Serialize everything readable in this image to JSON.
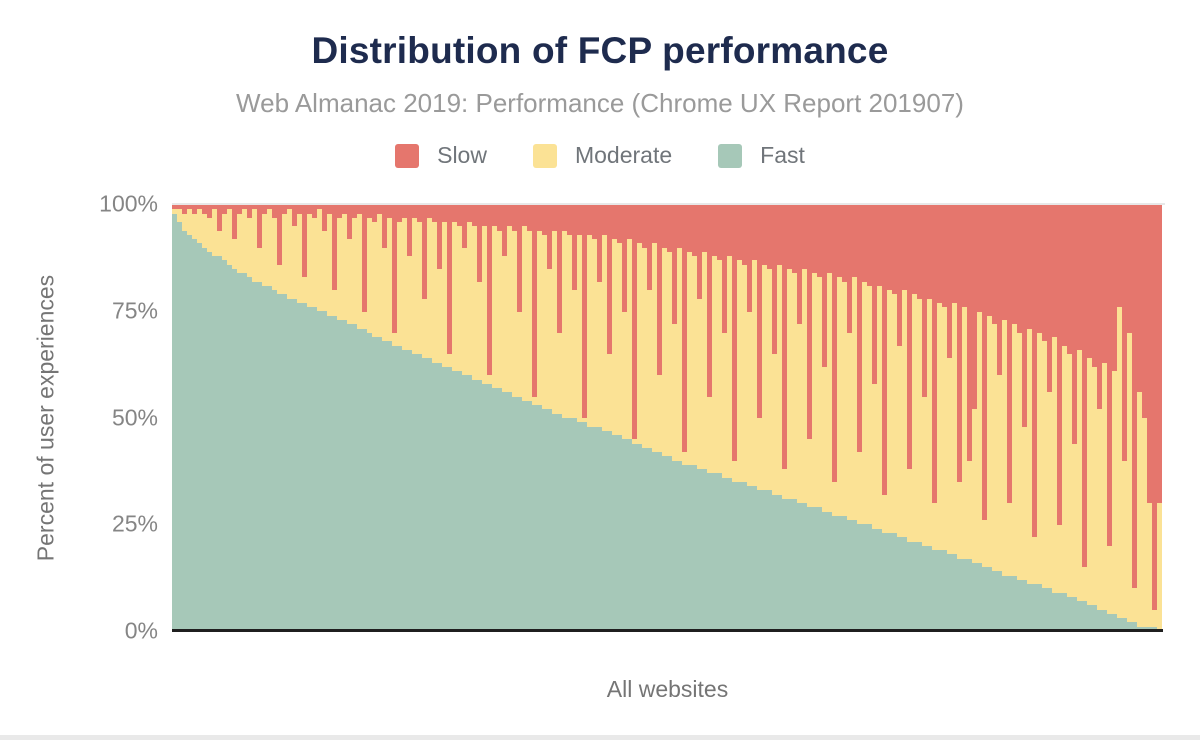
{
  "header": {
    "title": "Distribution of FCP performance",
    "subtitle": "Web Almanac 2019: Performance (Chrome UX Report 201907)"
  },
  "legend": [
    {
      "label": "Slow",
      "color": "#e5766d"
    },
    {
      "label": "Moderate",
      "color": "#fbe295"
    },
    {
      "label": "Fast",
      "color": "#a6c8b8"
    }
  ],
  "colors": {
    "background": "#ffffff",
    "title_text": "#1e2b4e",
    "subtitle_text": "#9a9a9a",
    "legend_text": "#70757a",
    "tick_text": "#858585",
    "axis_label_text": "#757575",
    "axis_line": "#1f1f1f",
    "gridline": "#e8e8e8",
    "footer_strip": "#e9e9e9"
  },
  "chart_data": {
    "type": "bar",
    "stacked": true,
    "stack_total_percent": 100,
    "title": "Distribution of FCP performance",
    "subtitle": "Web Almanac 2019: Performance (Chrome UX Report 201907)",
    "xlabel": "All websites",
    "ylabel": "Percent of user experiences",
    "ylim": [
      0,
      100
    ],
    "y_tick_labels": [
      "100%",
      "75%",
      "50%",
      "25%",
      "0%"
    ],
    "grid": "top-line-only",
    "legend_position": "top",
    "sort_order": "websites sorted by descending % fast (values sampled per column, left to right)",
    "series": [
      {
        "name": "Slow",
        "color": "#e5766d",
        "stack_position": "top"
      },
      {
        "name": "Moderate",
        "color": "#fbe295",
        "stack_position": "middle",
        "derivation": "100 - fast - slow"
      },
      {
        "name": "Fast",
        "color": "#a6c8b8",
        "stack_position": "bottom"
      }
    ],
    "columns": {
      "fast": [
        98,
        96,
        94,
        93,
        92,
        91,
        90,
        89,
        88,
        88,
        87,
        86,
        85,
        84,
        84,
        83,
        82,
        82,
        81,
        81,
        80,
        79,
        79,
        78,
        78,
        77,
        77,
        76,
        76,
        75,
        75,
        74,
        74,
        73,
        73,
        72,
        72,
        71,
        71,
        70,
        69,
        69,
        68,
        68,
        67,
        67,
        66,
        66,
        65,
        65,
        64,
        64,
        63,
        63,
        62,
        62,
        61,
        61,
        60,
        60,
        59,
        59,
        58,
        58,
        57,
        57,
        56,
        56,
        55,
        55,
        54,
        54,
        53,
        53,
        52,
        52,
        51,
        51,
        50,
        50,
        50,
        49,
        49,
        48,
        48,
        48,
        47,
        47,
        46,
        46,
        45,
        45,
        44,
        44,
        43,
        43,
        42,
        42,
        41,
        41,
        40,
        40,
        39,
        39,
        39,
        38,
        38,
        37,
        37,
        37,
        36,
        36,
        35,
        35,
        35,
        34,
        34,
        33,
        33,
        33,
        32,
        32,
        31,
        31,
        31,
        30,
        30,
        29,
        29,
        29,
        28,
        28,
        27,
        27,
        27,
        26,
        26,
        25,
        25,
        25,
        24,
        24,
        23,
        23,
        23,
        22,
        22,
        21,
        21,
        21,
        20,
        20,
        19,
        19,
        19,
        18,
        18,
        17,
        17,
        17,
        16,
        16,
        15,
        15,
        14,
        14,
        13,
        13,
        13,
        12,
        12,
        11,
        11,
        11,
        10,
        10,
        9,
        9,
        9,
        8,
        8,
        7,
        7,
        6,
        6,
        5,
        5,
        4,
        4,
        3,
        3,
        2,
        2,
        1,
        1,
        1,
        1,
        0
      ],
      "slow": [
        1,
        1,
        2,
        1,
        2,
        1,
        2,
        3,
        1,
        6,
        2,
        1,
        8,
        2,
        1,
        3,
        1,
        10,
        2,
        1,
        3,
        14,
        2,
        1,
        5,
        2,
        17,
        2,
        3,
        1,
        6,
        2,
        20,
        3,
        2,
        8,
        3,
        2,
        25,
        3,
        4,
        2,
        10,
        3,
        30,
        4,
        3,
        12,
        3,
        4,
        22,
        3,
        4,
        15,
        4,
        35,
        4,
        5,
        10,
        4,
        5,
        18,
        5,
        40,
        5,
        6,
        12,
        5,
        6,
        25,
        5,
        6,
        45,
        6,
        7,
        15,
        6,
        30,
        6,
        7,
        20,
        7,
        50,
        7,
        8,
        18,
        7,
        35,
        8,
        9,
        25,
        8,
        55,
        9,
        10,
        20,
        9,
        40,
        10,
        11,
        28,
        10,
        58,
        11,
        12,
        22,
        11,
        45,
        12,
        13,
        30,
        12,
        60,
        13,
        14,
        25,
        13,
        50,
        14,
        15,
        35,
        14,
        62,
        15,
        16,
        28,
        15,
        55,
        16,
        17,
        38,
        16,
        65,
        17,
        18,
        30,
        17,
        58,
        18,
        19,
        42,
        19,
        68,
        20,
        21,
        33,
        20,
        62,
        21,
        22,
        45,
        22,
        70,
        23,
        24,
        36,
        23,
        65,
        24,
        60,
        48,
        25,
        74,
        26,
        28,
        40,
        27,
        70,
        28,
        30,
        52,
        29,
        78,
        30,
        32,
        44,
        31,
        75,
        33,
        35,
        56,
        34,
        85,
        36,
        38,
        48,
        37,
        80,
        39,
        24,
        60,
        30,
        90,
        44,
        50,
        70,
        95,
        70
      ]
    }
  }
}
